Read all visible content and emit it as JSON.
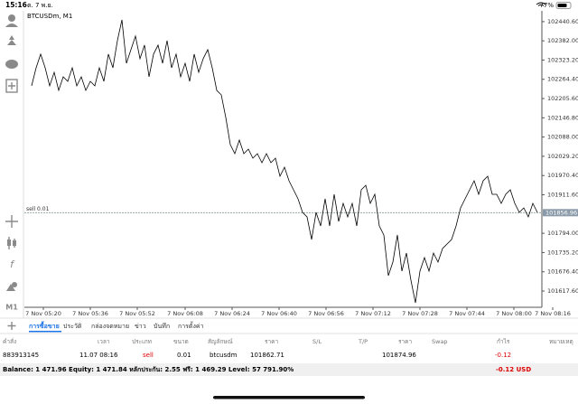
{
  "status_bar": {
    "time": "15:16",
    "date": "ต. 7 พ.ย.",
    "battery": "77%"
  },
  "toolbar": {
    "timeframe": "M1"
  },
  "chart_data": {
    "type": "line",
    "title": "BTCUSDm, M1",
    "color": "#000000",
    "values": [
      102244.5,
      102299.7,
      102341.2,
      102299.7,
      102244.5,
      102285.9,
      102230.7,
      102272.1,
      102258.3,
      102299.7,
      102244.5,
      102272.1,
      102230.7,
      102258.3,
      102244.5,
      102299.7,
      102258.3,
      102341.2,
      102299.7,
      102382.6,
      102446.1,
      102313.5,
      102355.0,
      102396.4,
      102327.4,
      102368.8,
      102272.1,
      102341.2,
      102368.8,
      102313.5,
      102382.6,
      102299.7,
      102341.2,
      102272.1,
      102313.5,
      102258.3,
      102341.2,
      102285.9,
      102327.4,
      102355.0,
      102299.7,
      102230.7,
      102216.9,
      102147.8,
      102065.0,
      102037.3,
      102078.8,
      102037.3,
      102051.2,
      102023.5,
      102037.3,
      102009.7,
      102037.3,
      102009.7,
      102023.5,
      101968.3,
      101995.9,
      101954.5,
      101926.9,
      101899.2,
      101857.8,
      101844.0,
      101775.0,
      101857.8,
      101816.4,
      101899.2,
      101816.4,
      101913.1,
      101830.2,
      101885.4,
      101844.0,
      101885.4,
      101816.4,
      101926.9,
      101940.7,
      101885.4,
      101913.1,
      101816.4,
      101788.8,
      101664.5,
      101705.9,
      101788.8,
      101678.3,
      101733.5,
      101650.7,
      101581.6,
      101678.3,
      101719.7,
      101678.3,
      101733.5,
      101705.9,
      101747.3,
      101761.1,
      101775.0,
      101816.4,
      101871.6,
      101899.2,
      101926.9,
      101954.5,
      101913.1,
      101954.5,
      101968.3,
      101913.1,
      101913.1,
      101885.4,
      101913.1,
      101926.9,
      101885.4,
      101857.8,
      101871.6,
      101844.0,
      101885.4,
      101857.8
    ],
    "xlim": [
      -0.4,
      115.6
    ],
    "xticks": [
      {
        "value": 2.6,
        "label": "7 Nov 05:20"
      },
      {
        "value": 13,
        "label": "7 Nov 05:36"
      },
      {
        "value": 23.4,
        "label": "7 Nov 05:52"
      },
      {
        "value": 34,
        "label": "7 Nov 06:08"
      },
      {
        "value": 44.4,
        "label": "7 Nov 06:24"
      },
      {
        "value": 54.8,
        "label": "7 Nov 06:40"
      },
      {
        "value": 65.2,
        "label": "7 Nov 06:56"
      },
      {
        "value": 75.6,
        "label": "7 Nov 07:12"
      },
      {
        "value": 86,
        "label": "7 Nov 07:28"
      },
      {
        "value": 96.4,
        "label": "7 Nov 07:44"
      },
      {
        "value": 106.8,
        "label": "7 Nov 08:00"
      },
      {
        "value": 115.4,
        "label": "7 Nov 08:16"
      }
    ],
    "ylim": [
      101579,
      102468
    ],
    "yticks": [
      {
        "value": 102440.6,
        "label": "102440.60"
      },
      {
        "value": 102382,
        "label": "102382.00"
      },
      {
        "value": 102323.2,
        "label": "102323.20"
      },
      {
        "value": 102264.4,
        "label": "102264.40"
      },
      {
        "value": 102205.6,
        "label": "102205.60"
      },
      {
        "value": 102146.8,
        "label": "102146.80"
      },
      {
        "value": 102088,
        "label": "102088.00"
      },
      {
        "value": 102029.2,
        "label": "102029.20"
      },
      {
        "value": 101970.4,
        "label": "101970.40"
      },
      {
        "value": 101911.6,
        "label": "101911.60"
      },
      {
        "value": 101794,
        "label": "101794.00"
      },
      {
        "value": 101735.2,
        "label": "101735.20"
      },
      {
        "value": 101676.4,
        "label": "101676.40"
      },
      {
        "value": 101617.6,
        "label": "101617.60"
      }
    ],
    "position_line": {
      "label": "sell 0.01",
      "price": 101856.96
    }
  },
  "tabs": [
    "การซื้อขาย",
    "ประวัติ",
    "กล่องจดหมาย",
    "ข่าว",
    "บันทึก",
    "การตั้งค่า"
  ],
  "active_tab": 0,
  "table": {
    "headers": [
      "คำสั่ง",
      "เวลา",
      "ประเภท",
      "ขนาด",
      "สัญลักษณ์",
      "ราคา",
      "S/L",
      "T/P",
      "ราคา",
      "Swap",
      "กำไร",
      "หมายเหตุ"
    ],
    "row": {
      "order": "883913145",
      "time": "11.07 08:16",
      "type": "sell",
      "volume": "0.01",
      "symbol": "btcusdm",
      "open_price": "101862.71",
      "current_price": "101874.96",
      "profit": "-0.12"
    }
  },
  "footer": {
    "summary": "Balance: 1 471.96 Equity: 1 471.84 หลักประกัน: 2.55 ฟรี: 1 469.29 Level: 57 791.90%",
    "profit": "-0.12 USD"
  }
}
